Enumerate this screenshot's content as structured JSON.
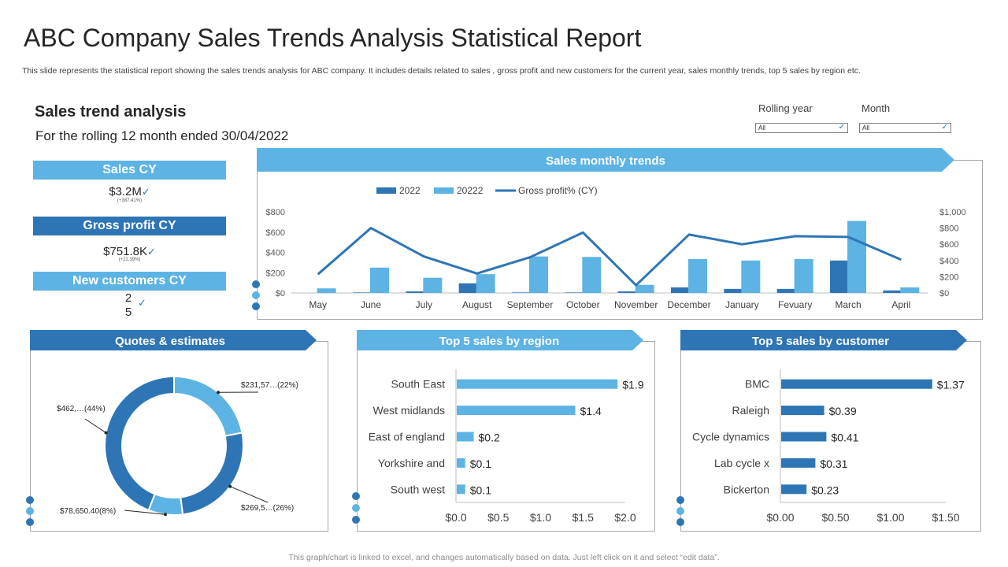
{
  "page": {
    "title": "ABC Company Sales Trends Analysis Statistical Report",
    "subtitle": "This slide represents the statistical report showing the sales trends analysis for ABC company. It includes details related to sales , gross profit and new customers for the current year,  sales monthly trends, top 5 sales by region etc.",
    "footer": "This graph/chart is linked to excel,  and changes automatically based on data. Just left click on it and select “edit data”."
  },
  "summary": {
    "title": "Sales trend analysis",
    "period": "For the rolling 12 month ended 30/04/2022"
  },
  "filters": {
    "rolling_label": "Rolling year",
    "rolling_value": "All",
    "month_label": "Month",
    "month_value": "All",
    "check_icon": "✓"
  },
  "kpis": {
    "sales_label": "Sales CY",
    "sales_value": "$3.2M",
    "sales_note": "(+387.41%)",
    "profit_label": "Gross profit CY",
    "profit_value": "$751.8K",
    "profit_note": "(+21.39%)",
    "customers_label": "New customers CY",
    "customers_value_1": "2",
    "customers_value_2": "5",
    "check_icon": "✓"
  },
  "panels": {
    "monthly": "Sales monthly trends",
    "quotes": "Quotes & estimates",
    "region": "Top 5 sales by region",
    "customer": "Top 5 sales by customer"
  },
  "colors": {
    "dark_blue": "#2e75b6",
    "light_blue": "#5db3e4",
    "line": "#2e75b6"
  },
  "chart_data": [
    {
      "type": "bar",
      "title": "Sales monthly trends",
      "categories": [
        "May",
        "June",
        "July",
        "August",
        "September",
        "October",
        "November",
        "December",
        "January",
        "Fevuary",
        "March",
        "April"
      ],
      "series": [
        {
          "name": "2022",
          "type": "bar",
          "axis": "left",
          "color": "#2e75b6",
          "values": [
            0,
            5,
            15,
            95,
            5,
            5,
            15,
            55,
            40,
            40,
            320,
            25
          ]
        },
        {
          "name": "20222",
          "type": "bar",
          "axis": "left",
          "color": "#5db3e4",
          "values": [
            45,
            250,
            150,
            185,
            360,
            355,
            80,
            335,
            320,
            335,
            710,
            55
          ]
        },
        {
          "name": "Gross profit% (CY)",
          "type": "line",
          "axis": "right",
          "color": "#2e75b6",
          "values": [
            230,
            800,
            450,
            240,
            440,
            745,
            95,
            720,
            600,
            700,
            690,
            410
          ]
        }
      ],
      "ylim": [
        0,
        800
      ],
      "yticks": [
        "$0",
        "$200",
        "$400",
        "$600",
        "$800"
      ],
      "y2lim": [
        0,
        1000
      ],
      "y2ticks": [
        "$0",
        "$200",
        "$400",
        "$600",
        "$800",
        "$1,000"
      ],
      "legend": "top"
    },
    {
      "type": "pie",
      "title": "Quotes & estimates",
      "slices": [
        {
          "label": "$231,57…(22%)",
          "value": 22,
          "color": "#5db3e4"
        },
        {
          "label": "$269,5…(26%)",
          "value": 26,
          "color": "#2e75b6"
        },
        {
          "label": "$78,650.40(8%)",
          "value": 8,
          "color": "#5db3e4"
        },
        {
          "label": "$462,…(44%)",
          "value": 44,
          "color": "#2e75b6"
        }
      ]
    },
    {
      "type": "bar",
      "orientation": "horizontal",
      "title": "Top 5 sales by region",
      "categories": [
        "South East",
        "West midlands",
        "East of england",
        "Yorkshire and",
        "South west"
      ],
      "values": [
        1.9,
        1.4,
        0.2,
        0.1,
        0.1
      ],
      "value_labels": [
        "$1.9",
        "$1.4",
        "$0.2",
        "$0.1",
        "$0.1"
      ],
      "xlim": [
        0,
        2.0
      ],
      "xticks": [
        "$0.0",
        "$0.5",
        "$1.0",
        "$1.5",
        "$2.0"
      ],
      "color": "#5db3e4"
    },
    {
      "type": "bar",
      "orientation": "horizontal",
      "title": "Top 5 sales by customer",
      "categories": [
        "BMC",
        "Raleigh",
        "Cycle dynamics",
        "Lab cycle x",
        "Bickerton"
      ],
      "values": [
        1.37,
        0.39,
        0.41,
        0.31,
        0.23
      ],
      "value_labels": [
        "$1.37",
        "$0.39",
        "$0.41",
        "$0.31",
        "$0.23"
      ],
      "xlim": [
        0,
        1.5
      ],
      "xticks": [
        "$0.00",
        "$0.50",
        "$1.00",
        "$1.50"
      ],
      "color": "#2e75b6"
    }
  ]
}
